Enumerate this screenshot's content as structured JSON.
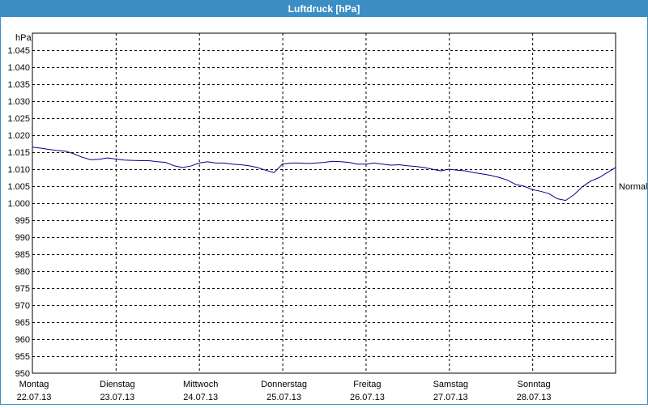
{
  "window": {
    "title": "Luftdruck [hPa]"
  },
  "chart_data": {
    "type": "line",
    "unit_label": "hPa",
    "y_ticks": [
      {
        "value": 950,
        "label": "950"
      },
      {
        "value": 955,
        "label": "955"
      },
      {
        "value": 960,
        "label": "960"
      },
      {
        "value": 965,
        "label": "965"
      },
      {
        "value": 970,
        "label": "970"
      },
      {
        "value": 975,
        "label": "975"
      },
      {
        "value": 980,
        "label": "980"
      },
      {
        "value": 985,
        "label": "985"
      },
      {
        "value": 990,
        "label": "990"
      },
      {
        "value": 995,
        "label": "995"
      },
      {
        "value": 1000,
        "label": "1.000"
      },
      {
        "value": 1005,
        "label": "1.005"
      },
      {
        "value": 1010,
        "label": "1.010"
      },
      {
        "value": 1015,
        "label": "1.015"
      },
      {
        "value": 1020,
        "label": "1.020"
      },
      {
        "value": 1025,
        "label": "1.025"
      },
      {
        "value": 1030,
        "label": "1.030"
      },
      {
        "value": 1035,
        "label": "1.035"
      },
      {
        "value": 1040,
        "label": "1.040"
      },
      {
        "value": 1045,
        "label": "1.045"
      }
    ],
    "ylim": [
      950,
      1050
    ],
    "xlim": [
      0,
      7
    ],
    "x_ticks": [
      {
        "value": 0,
        "day": "Montag",
        "date": "22.07.13"
      },
      {
        "value": 1,
        "day": "Dienstag",
        "date": "23.07.13"
      },
      {
        "value": 2,
        "day": "Mittwoch",
        "date": "24.07.13"
      },
      {
        "value": 3,
        "day": "Donnerstag",
        "date": "25.07.13"
      },
      {
        "value": 4,
        "day": "Freitag",
        "date": "26.07.13"
      },
      {
        "value": 5,
        "day": "Samstag",
        "date": "27.07.13"
      },
      {
        "value": 6,
        "day": "Sonntag",
        "date": "28.07.13"
      }
    ],
    "grid": true,
    "reference_line": {
      "value": 1005,
      "label": "Normal"
    },
    "series_color": "#00008b",
    "series": [
      {
        "x": [
          0,
          0.1,
          0.2,
          0.3,
          0.4,
          0.5,
          0.6,
          0.7,
          0.8,
          0.9,
          1.0,
          1.1,
          1.2,
          1.3,
          1.4,
          1.5,
          1.6,
          1.7,
          1.8,
          1.9,
          2.0,
          2.1,
          2.2,
          2.3,
          2.4,
          2.5,
          2.6,
          2.7,
          2.8,
          2.9,
          3.0,
          3.1,
          3.2,
          3.3,
          3.4,
          3.5,
          3.6,
          3.7,
          3.8,
          3.9,
          4.0,
          4.1,
          4.2,
          4.3,
          4.4,
          4.5,
          4.6,
          4.7,
          4.8,
          4.9,
          5.0,
          5.1,
          5.2,
          5.3,
          5.4,
          5.5,
          5.6,
          5.7,
          5.8,
          5.9,
          6.0,
          6.1,
          6.2,
          6.3,
          6.4,
          6.5,
          6.6,
          6.7,
          6.8,
          6.9,
          7.0
        ],
        "values": [
          1016.5,
          1016.2,
          1015.8,
          1015.5,
          1015.3,
          1014.5,
          1013.5,
          1012.8,
          1012.9,
          1013.3,
          1013.0,
          1012.7,
          1012.6,
          1012.5,
          1012.5,
          1012.2,
          1012.0,
          1011.0,
          1010.5,
          1010.9,
          1011.8,
          1012.2,
          1011.8,
          1011.8,
          1011.5,
          1011.3,
          1011.0,
          1010.5,
          1009.7,
          1009.0,
          1011.5,
          1011.8,
          1011.8,
          1011.7,
          1011.8,
          1012.0,
          1012.3,
          1012.2,
          1012.0,
          1011.5,
          1011.5,
          1011.8,
          1011.5,
          1011.2,
          1011.3,
          1011.0,
          1010.8,
          1010.5,
          1010.0,
          1009.5,
          1010.0,
          1009.7,
          1009.5,
          1009.0,
          1008.6,
          1008.2,
          1007.6,
          1006.8,
          1005.5,
          1005.0,
          1004.0,
          1003.5,
          1002.8,
          1001.3,
          1000.8,
          1002.5,
          1004.8,
          1006.5,
          1007.5,
          1009.0,
          1010.5
        ]
      }
    ]
  }
}
